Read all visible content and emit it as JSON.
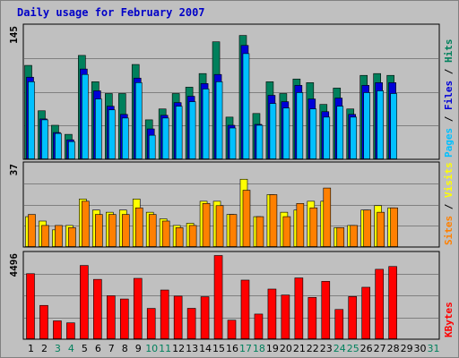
{
  "title": "Daily usage for February 2007",
  "colors": {
    "hits": "#00805c",
    "files": "#0000d8",
    "pages": "#00c0ff",
    "visits": "#ffff00",
    "sites": "#ff8000",
    "kbytes": "#ff0000",
    "weekend": "#00805c",
    "weekday": "#000000"
  },
  "chart_data": [
    {
      "type": "bar",
      "title": "Daily usage for February 2007",
      "categories": [
        "1",
        "2",
        "3",
        "4",
        "5",
        "6",
        "7",
        "8",
        "9",
        "10",
        "11",
        "12",
        "13",
        "14",
        "15",
        "16",
        "17",
        "18",
        "19",
        "20",
        "21",
        "22",
        "23",
        "24",
        "25",
        "26",
        "27",
        "28",
        "29",
        "30",
        "31"
      ],
      "weekend_days": [
        "3",
        "4",
        "10",
        "11",
        "17",
        "18",
        "24",
        "25",
        "31"
      ],
      "ymax_label": "145",
      "legend": [
        "Pages",
        "Files",
        "Hits"
      ],
      "ylim": [
        0,
        145
      ],
      "series": [
        {
          "name": "Hits",
          "values": [
            104,
            54,
            38,
            28,
            115,
            86,
            73,
            73,
            105,
            44,
            56,
            73,
            80,
            95,
            130,
            47,
            137,
            51,
            86,
            73,
            89,
            85,
            61,
            79,
            56,
            93,
            95,
            93,
            0,
            0,
            0
          ]
        },
        {
          "name": "Files",
          "values": [
            91,
            45,
            30,
            22,
            100,
            76,
            59,
            50,
            90,
            34,
            49,
            63,
            70,
            84,
            94,
            38,
            126,
            39,
            71,
            64,
            82,
            67,
            53,
            68,
            50,
            82,
            85,
            85,
            0,
            0,
            0
          ]
        },
        {
          "name": "Pages",
          "values": [
            86,
            44,
            29,
            20,
            94,
            67,
            55,
            46,
            85,
            27,
            46,
            59,
            64,
            78,
            86,
            35,
            117,
            38,
            62,
            57,
            74,
            56,
            47,
            59,
            47,
            74,
            76,
            73,
            0,
            0,
            0
          ]
        }
      ]
    },
    {
      "type": "bar",
      "ymax_label": "37",
      "legend": [
        "Sites",
        "Visits"
      ],
      "ylim": [
        0,
        37
      ],
      "series": [
        {
          "name": "Visits",
          "values": [
            14,
            12,
            8,
            10,
            22,
            17,
            16,
            17,
            22,
            16,
            13,
            10,
            11,
            21,
            21,
            15,
            31,
            14,
            24,
            16,
            17,
            21,
            21,
            9,
            10,
            17,
            19,
            18,
            0,
            0,
            0
          ]
        },
        {
          "name": "Sites",
          "values": [
            15,
            10,
            10,
            9,
            21,
            15,
            15,
            15,
            18,
            15,
            12,
            9,
            10,
            20,
            19,
            15,
            26,
            14,
            24,
            14,
            20,
            18,
            27,
            9,
            10,
            17,
            16,
            18,
            0,
            0,
            0
          ]
        }
      ]
    },
    {
      "type": "bar",
      "ymax_label": "4496",
      "legend": [
        "KBytes"
      ],
      "ylim": [
        0,
        4496
      ],
      "series": [
        {
          "name": "KBytes",
          "values": [
            3526,
            1830,
            1005,
            898,
            3964,
            3221,
            2347,
            2173,
            3276,
            1670,
            2653,
            2326,
            1674,
            2293,
            4496,
            1040,
            3182,
            1367,
            2703,
            2385,
            3299,
            2258,
            3116,
            1613,
            2303,
            2800,
            3760,
            3910,
            0,
            0,
            0
          ]
        }
      ]
    }
  ]
}
